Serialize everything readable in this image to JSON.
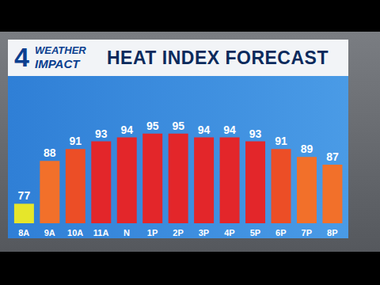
{
  "chart_data": {
    "type": "bar",
    "title": "HEAT INDEX FORECAST",
    "annotations": [
      "4",
      "WEATHER",
      "IMPACT"
    ],
    "categories": [
      "8A",
      "9A",
      "10A",
      "11A",
      "N",
      "1P",
      "2P",
      "3P",
      "4P",
      "5P",
      "6P",
      "7P",
      "8P"
    ],
    "values": [
      77,
      88,
      91,
      93,
      94,
      95,
      95,
      94,
      94,
      93,
      91,
      89,
      87
    ],
    "colors": [
      "#e6e62a",
      "#f2702a",
      "#ec4e26",
      "#e3262a",
      "#e3262a",
      "#e3262a",
      "#e3262a",
      "#e3262a",
      "#e3262a",
      "#e3262a",
      "#ec4e26",
      "#f2702a",
      "#f2702a"
    ],
    "ylim": [
      72,
      100
    ],
    "data_labels": true,
    "tick_labels": "x",
    "grid": false
  }
}
